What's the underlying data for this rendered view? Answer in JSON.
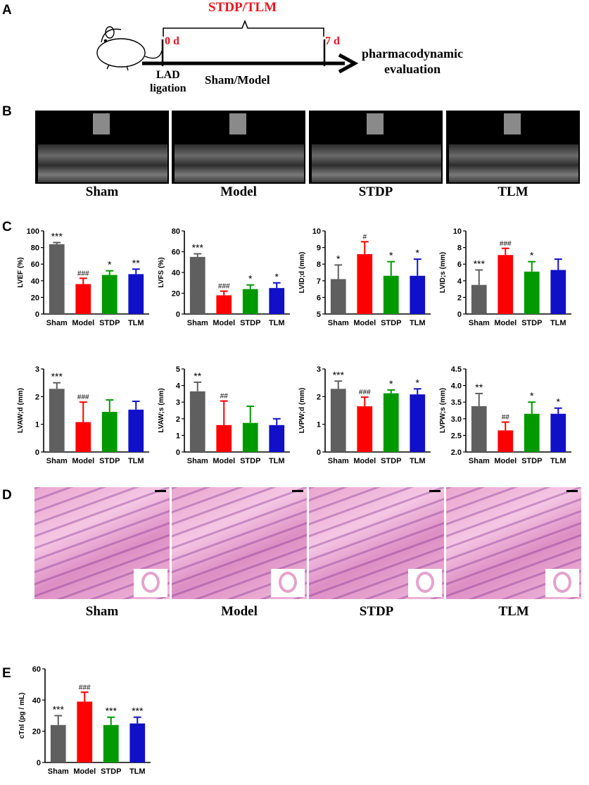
{
  "panels": {
    "a": "A",
    "b": "B",
    "c": "C",
    "d": "D",
    "e": "E"
  },
  "schematic": {
    "treatment": "STDP/TLM",
    "day0": "0 d",
    "day7": "7 d",
    "ligation": "LAD\nligation",
    "group": "Sham/Model",
    "endpoint": "pharmacodynamic\nevaluation"
  },
  "groups": [
    "Sham",
    "Model",
    "STDP",
    "TLM"
  ],
  "colors": {
    "Sham": "#5f5f5f",
    "Model": "#ff0000",
    "STDP": "#009900",
    "TLM": "#1010c8"
  },
  "chart_data": [
    {
      "type": "bar",
      "ylabel": "LVEF (%)",
      "categories": [
        "Sham",
        "Model",
        "STDP",
        "TLM"
      ],
      "values": [
        84,
        36,
        47,
        48
      ],
      "errors": [
        2,
        7,
        5,
        6
      ],
      "marks": [
        "***",
        "###",
        "*",
        "**"
      ],
      "ylim": [
        0,
        100
      ],
      "yticks": [
        0,
        20,
        40,
        60,
        80,
        100
      ]
    },
    {
      "type": "bar",
      "ylabel": "LVFS (%)",
      "categories": [
        "Sham",
        "Model",
        "STDP",
        "TLM"
      ],
      "values": [
        55,
        18,
        24,
        25
      ],
      "errors": [
        3,
        4,
        4,
        5
      ],
      "marks": [
        "***",
        "###",
        "*",
        "*"
      ],
      "ylim": [
        0,
        80
      ],
      "yticks": [
        0,
        20,
        40,
        60,
        80
      ]
    },
    {
      "type": "bar",
      "ylabel": "LVID;d (mm)",
      "categories": [
        "Sham",
        "Model",
        "STDP",
        "TLM"
      ],
      "values": [
        7.1,
        8.6,
        7.3,
        7.3
      ],
      "errors": [
        0.85,
        0.75,
        0.85,
        1.0
      ],
      "marks": [
        "*",
        "#",
        "*",
        "*"
      ],
      "ylim": [
        5,
        10
      ],
      "yticks": [
        5,
        6,
        7,
        8,
        9,
        10
      ]
    },
    {
      "type": "bar",
      "ylabel": "LVID;s (mm)",
      "categories": [
        "Sham",
        "Model",
        "STDP",
        "TLM"
      ],
      "values": [
        3.5,
        7.1,
        5.1,
        5.3
      ],
      "errors": [
        1.8,
        0.8,
        1.2,
        1.3
      ],
      "marks": [
        "***",
        "###",
        "*",
        ""
      ],
      "ylim": [
        0,
        10
      ],
      "yticks": [
        0,
        2,
        4,
        6,
        8,
        10
      ]
    },
    {
      "type": "bar",
      "ylabel": "LVAW;d (mm)",
      "categories": [
        "Sham",
        "Model",
        "STDP",
        "TLM"
      ],
      "values": [
        2.28,
        1.08,
        1.45,
        1.53
      ],
      "errors": [
        0.22,
        0.72,
        0.43,
        0.3
      ],
      "marks": [
        "***",
        "###",
        "",
        ""
      ],
      "ylim": [
        0,
        3
      ],
      "yticks": [
        0,
        1,
        2,
        3
      ]
    },
    {
      "type": "bar",
      "ylabel": "LVAW;s (mm)",
      "categories": [
        "Sham",
        "Model",
        "STDP",
        "TLM"
      ],
      "values": [
        3.65,
        1.62,
        1.75,
        1.62
      ],
      "errors": [
        0.55,
        1.45,
        1.0,
        0.38
      ],
      "marks": [
        "**",
        "##",
        "",
        ""
      ],
      "ylim": [
        0,
        5
      ],
      "yticks": [
        0,
        1,
        2,
        3,
        4,
        5
      ]
    },
    {
      "type": "bar",
      "ylabel": "LVPW;d (mm)",
      "categories": [
        "Sham",
        "Model",
        "STDP",
        "TLM"
      ],
      "values": [
        2.28,
        1.65,
        2.12,
        2.08
      ],
      "errors": [
        0.28,
        0.33,
        0.12,
        0.2
      ],
      "marks": [
        "***",
        "###",
        "*",
        "*"
      ],
      "ylim": [
        0,
        3
      ],
      "yticks": [
        0,
        1,
        2,
        3
      ]
    },
    {
      "type": "bar",
      "ylabel": "LVPW;s (mm)",
      "categories": [
        "Sham",
        "Model",
        "STDP",
        "TLM"
      ],
      "values": [
        3.38,
        2.65,
        3.15,
        3.15
      ],
      "errors": [
        0.38,
        0.25,
        0.35,
        0.17
      ],
      "marks": [
        "**",
        "##",
        "*",
        "*"
      ],
      "ylim": [
        2.0,
        4.5
      ],
      "yticks": [
        2.0,
        2.5,
        3.0,
        3.5,
        4.0,
        4.5
      ]
    },
    {
      "type": "bar",
      "ylabel": "cTnI (pg / mL)",
      "categories": [
        "Sham",
        "Model",
        "STDP",
        "TLM"
      ],
      "values": [
        24,
        39,
        24,
        25
      ],
      "errors": [
        6,
        6,
        5,
        4
      ],
      "marks": [
        "***",
        "###",
        "***",
        "***"
      ],
      "ylim": [
        0,
        60
      ],
      "yticks": [
        0,
        20,
        40,
        60
      ]
    }
  ]
}
